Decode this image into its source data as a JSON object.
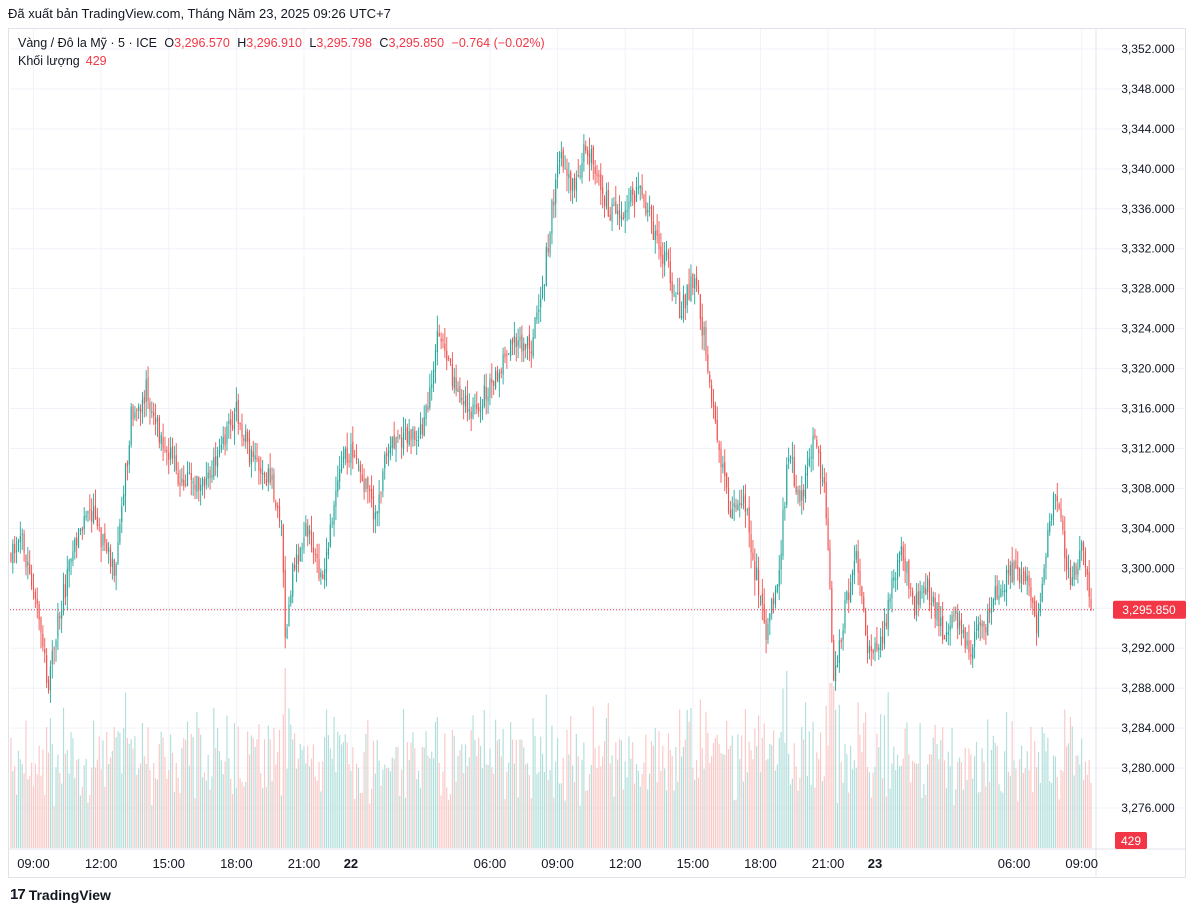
{
  "header": {
    "published_line": "Đã xuất bản TradingView.com, Tháng Năm 23, 2025 09:26 UTC+7"
  },
  "legend": {
    "symbol": "Vàng / Đô la Mỹ · 5 · ICE",
    "open_label": "O",
    "open": "3,296.570",
    "high_label": "H",
    "high": "3,296.910",
    "low_label": "L",
    "low": "3,295.798",
    "close_label": "C",
    "close": "3,295.850",
    "change": "−0.764 (−0.02%)",
    "volume_label": "Khối lượng",
    "volume_value": "429"
  },
  "colors": {
    "up": "#26a69a",
    "down": "#ef5350",
    "up_vol": "#b2dfdb",
    "down_vol": "#f9c9c7",
    "grid": "#f0f3fa",
    "price_line": "#f23645"
  },
  "chart_data": {
    "type": "candlestick",
    "symbol": "Vàng / Đô la Mỹ",
    "interval": "5",
    "ylim": [
      3272.0,
      3354.0
    ],
    "y_ticks": [
      "3,352.000",
      "3,348.000",
      "3,344.000",
      "3,340.000",
      "3,336.000",
      "3,332.000",
      "3,328.000",
      "3,324.000",
      "3,320.000",
      "3,316.000",
      "3,312.000",
      "3,308.000",
      "3,304.000",
      "3,300.000",
      "3,296.000",
      "3,292.000",
      "3,288.000",
      "3,284.000",
      "3,280.000",
      "3,276.000"
    ],
    "y_tick_values": [
      3352,
      3348,
      3344,
      3340,
      3336,
      3332,
      3328,
      3324,
      3320,
      3316,
      3312,
      3308,
      3304,
      3300,
      3296,
      3292,
      3288,
      3284,
      3280,
      3276
    ],
    "x_ticks": [
      "09:00",
      "12:00",
      "15:00",
      "18:00",
      "21:00",
      "22",
      "06:00",
      "09:00",
      "12:00",
      "15:00",
      "18:00",
      "21:00",
      "23",
      "06:00",
      "09:00"
    ],
    "x_tick_bold": [
      false,
      false,
      false,
      false,
      false,
      true,
      false,
      false,
      false,
      false,
      false,
      false,
      true,
      false,
      false
    ],
    "x_tick_index": [
      12,
      48,
      84,
      120,
      156,
      181,
      255,
      291,
      327,
      363,
      399,
      435,
      460,
      534,
      570
    ],
    "candle_count": 576,
    "last_price": "3,295.850",
    "last_price_value": 3295.85,
    "last_volume": "429",
    "close_path": [
      {
        "i": 0,
        "p": 3301.0
      },
      {
        "i": 6,
        "p": 3303.0
      },
      {
        "i": 14,
        "p": 3296.0
      },
      {
        "i": 20,
        "p": 3288.0
      },
      {
        "i": 26,
        "p": 3296.0
      },
      {
        "i": 34,
        "p": 3302.0
      },
      {
        "i": 42,
        "p": 3306.0
      },
      {
        "i": 50,
        "p": 3302.0
      },
      {
        "i": 56,
        "p": 3300.0
      },
      {
        "i": 64,
        "p": 3315.0
      },
      {
        "i": 72,
        "p": 3318.0
      },
      {
        "i": 80,
        "p": 3313.0
      },
      {
        "i": 90,
        "p": 3309.0
      },
      {
        "i": 100,
        "p": 3308.0
      },
      {
        "i": 112,
        "p": 3312.0
      },
      {
        "i": 120,
        "p": 3316.0
      },
      {
        "i": 128,
        "p": 3311.0
      },
      {
        "i": 138,
        "p": 3309.0
      },
      {
        "i": 144,
        "p": 3305.0
      },
      {
        "i": 146,
        "p": 3293.0
      },
      {
        "i": 150,
        "p": 3300.0
      },
      {
        "i": 158,
        "p": 3304.0
      },
      {
        "i": 166,
        "p": 3298.0
      },
      {
        "i": 172,
        "p": 3306.0
      },
      {
        "i": 178,
        "p": 3312.0
      },
      {
        "i": 186,
        "p": 3310.0
      },
      {
        "i": 194,
        "p": 3305.0
      },
      {
        "i": 200,
        "p": 3312.0
      },
      {
        "i": 212,
        "p": 3313.0
      },
      {
        "i": 220,
        "p": 3314.0
      },
      {
        "i": 228,
        "p": 3324.0
      },
      {
        "i": 236,
        "p": 3318.0
      },
      {
        "i": 246,
        "p": 3316.0
      },
      {
        "i": 256,
        "p": 3318.0
      },
      {
        "i": 266,
        "p": 3323.0
      },
      {
        "i": 276,
        "p": 3322.0
      },
      {
        "i": 282,
        "p": 3326.0
      },
      {
        "i": 288,
        "p": 3336.0
      },
      {
        "i": 292,
        "p": 3342.0
      },
      {
        "i": 298,
        "p": 3338.0
      },
      {
        "i": 306,
        "p": 3342.0
      },
      {
        "i": 312,
        "p": 3340.0
      },
      {
        "i": 318,
        "p": 3336.0
      },
      {
        "i": 322,
        "p": 3335.0
      },
      {
        "i": 330,
        "p": 3337.0
      },
      {
        "i": 336,
        "p": 3338.0
      },
      {
        "i": 342,
        "p": 3334.0
      },
      {
        "i": 350,
        "p": 3330.0
      },
      {
        "i": 356,
        "p": 3326.0
      },
      {
        "i": 364,
        "p": 3329.0
      },
      {
        "i": 370,
        "p": 3322.0
      },
      {
        "i": 376,
        "p": 3312.0
      },
      {
        "i": 384,
        "p": 3305.0
      },
      {
        "i": 390,
        "p": 3308.0
      },
      {
        "i": 396,
        "p": 3300.0
      },
      {
        "i": 402,
        "p": 3294.0
      },
      {
        "i": 408,
        "p": 3298.0
      },
      {
        "i": 414,
        "p": 3312.0
      },
      {
        "i": 420,
        "p": 3306.0
      },
      {
        "i": 428,
        "p": 3314.0
      },
      {
        "i": 434,
        "p": 3306.0
      },
      {
        "i": 438,
        "p": 3289.0
      },
      {
        "i": 444,
        "p": 3296.0
      },
      {
        "i": 450,
        "p": 3302.0
      },
      {
        "i": 456,
        "p": 3292.0
      },
      {
        "i": 462,
        "p": 3292.0
      },
      {
        "i": 468,
        "p": 3297.0
      },
      {
        "i": 474,
        "p": 3303.0
      },
      {
        "i": 480,
        "p": 3296.0
      },
      {
        "i": 488,
        "p": 3298.0
      },
      {
        "i": 496,
        "p": 3294.0
      },
      {
        "i": 504,
        "p": 3295.0
      },
      {
        "i": 510,
        "p": 3292.0
      },
      {
        "i": 518,
        "p": 3294.0
      },
      {
        "i": 526,
        "p": 3298.0
      },
      {
        "i": 534,
        "p": 3300.0
      },
      {
        "i": 542,
        "p": 3298.0
      },
      {
        "i": 546,
        "p": 3294.0
      },
      {
        "i": 552,
        "p": 3304.0
      },
      {
        "i": 556,
        "p": 3307.0
      },
      {
        "i": 560,
        "p": 3303.0
      },
      {
        "i": 564,
        "p": 3299.0
      },
      {
        "i": 570,
        "p": 3302.0
      },
      {
        "i": 575,
        "p": 3295.85
      }
    ]
  },
  "footer": {
    "brand": "TradingView",
    "logo_mark": "17"
  }
}
